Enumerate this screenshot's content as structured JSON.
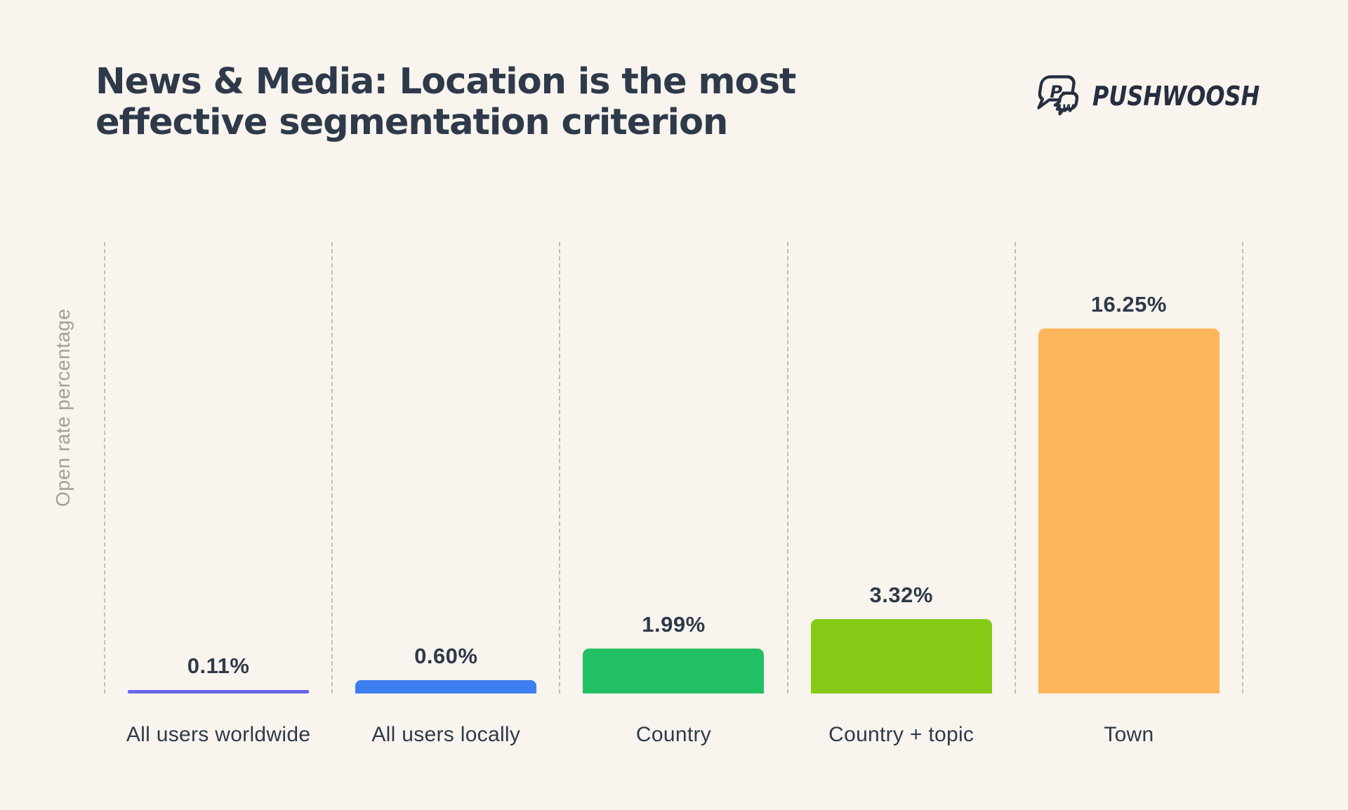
{
  "header": {
    "title": "News & Media: Location is the most effective segmentation criterion",
    "title_line1": "News & Media: Location is the most",
    "title_line2": "effective segmentation criterion",
    "brand": "PUSHWOOSH",
    "logo_letter_p": "P",
    "logo_letter_w": "W"
  },
  "chart_data": {
    "type": "bar",
    "title": "News & Media: Location is the most effective segmentation criterion",
    "categories": [
      "All users worldwide",
      "All users locally",
      "Country",
      "Country + topic",
      "Town"
    ],
    "values": [
      0.11,
      0.6,
      1.99,
      3.32,
      16.25
    ],
    "value_labels": [
      "0.11%",
      "0.60%",
      "1.99%",
      "3.32%",
      "16.25%"
    ],
    "bar_colors": [
      "#6965E8",
      "#3D7EF0",
      "#23C063",
      "#85CB15",
      "#FDB55C"
    ],
    "xlabel": "",
    "ylabel": "Open rate percentage",
    "ylim": [
      0,
      20
    ],
    "grid": "vertical dashed category separators",
    "legend": "none",
    "value_label_position": "above bars"
  },
  "colors": {
    "background": "#F9F4EE",
    "text": "#2E3A4A",
    "logo": "#252F40",
    "axis_label": "#A3A09B",
    "separator": "#BDBFC3"
  }
}
